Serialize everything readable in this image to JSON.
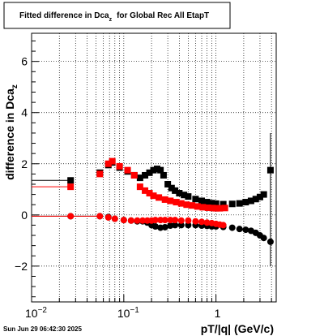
{
  "chart_data": {
    "type": "scatter",
    "title_main": "Fitted difference in Dca",
    "title_sub": "z",
    "title_tail": "for Global Rec All EtapT",
    "xlabel": "pT/|q| (GeV/c)",
    "ylabel_main": "difference in Dca",
    "ylabel_sub": "z",
    "x_scale": "log",
    "xlim": [
      0.01,
      4.5
    ],
    "ylim": [
      -3.4,
      7.1
    ],
    "grid": true,
    "x_major_ticks": [
      {
        "value": 0.01,
        "label": "10",
        "exp": "−2"
      },
      {
        "value": 0.1,
        "label": "10",
        "exp": "−1"
      },
      {
        "value": 1,
        "label": "1",
        "exp": ""
      }
    ],
    "y_ticks": [
      {
        "value": -2,
        "label": "−2"
      },
      {
        "value": 0,
        "label": "0"
      },
      {
        "value": 2,
        "label": "2"
      },
      {
        "value": 4,
        "label": "4"
      },
      {
        "value": 6,
        "label": "6"
      }
    ],
    "colors": {
      "black": "#000000",
      "red": "#ff0000"
    },
    "series": [
      {
        "color": "#000000",
        "marker": "square",
        "points": [
          [
            0.0265,
            1.35
          ],
          [
            0.055,
            1.65
          ],
          [
            0.068,
            1.95
          ],
          [
            0.075,
            2.05
          ],
          [
            0.09,
            1.85
          ],
          [
            0.11,
            1.7
          ],
          [
            0.13,
            1.55
          ],
          [
            0.15,
            1.45
          ],
          [
            0.17,
            1.55
          ],
          [
            0.19,
            1.65
          ],
          [
            0.21,
            1.75
          ],
          [
            0.23,
            1.8
          ],
          [
            0.25,
            1.75
          ],
          [
            0.27,
            1.55
          ],
          [
            0.3,
            1.2
          ],
          [
            0.33,
            1.05
          ],
          [
            0.36,
            0.95
          ],
          [
            0.4,
            0.85
          ],
          [
            0.45,
            0.78
          ],
          [
            0.5,
            0.72
          ],
          [
            0.6,
            0.62
          ],
          [
            0.7,
            0.55
          ],
          [
            0.8,
            0.5
          ],
          [
            0.9,
            0.46
          ],
          [
            1.0,
            0.44
          ],
          [
            1.2,
            0.42
          ],
          [
            1.5,
            0.43
          ],
          [
            1.8,
            0.45
          ],
          [
            2.1,
            0.5
          ],
          [
            2.4,
            0.55
          ],
          [
            2.7,
            0.62
          ],
          [
            3.0,
            0.7
          ],
          [
            3.3,
            0.8
          ],
          [
            3.9,
            1.75
          ]
        ]
      },
      {
        "color": "#ff0000",
        "marker": "square",
        "points": [
          [
            0.0265,
            1.1
          ],
          [
            0.055,
            1.6
          ],
          [
            0.068,
            2.0
          ],
          [
            0.075,
            2.1
          ],
          [
            0.09,
            1.9
          ],
          [
            0.11,
            1.75
          ],
          [
            0.13,
            1.55
          ],
          [
            0.15,
            1.1
          ],
          [
            0.17,
            0.95
          ],
          [
            0.19,
            0.85
          ],
          [
            0.21,
            0.75
          ],
          [
            0.24,
            0.68
          ],
          [
            0.28,
            0.6
          ],
          [
            0.32,
            0.55
          ],
          [
            0.37,
            0.5
          ],
          [
            0.42,
            0.45
          ],
          [
            0.48,
            0.4
          ],
          [
            0.55,
            0.37
          ],
          [
            0.63,
            0.33
          ],
          [
            0.72,
            0.3
          ],
          [
            0.82,
            0.28
          ],
          [
            0.92,
            0.27
          ],
          [
            1.0,
            0.26
          ],
          [
            1.1,
            0.26
          ],
          [
            1.25,
            0.27
          ]
        ]
      },
      {
        "color": "#000000",
        "marker": "circle",
        "points": [
          [
            0.0265,
            -0.05
          ],
          [
            0.055,
            -0.05
          ],
          [
            0.068,
            -0.08
          ],
          [
            0.08,
            -0.15
          ],
          [
            0.1,
            -0.2
          ],
          [
            0.12,
            -0.22
          ],
          [
            0.14,
            -0.25
          ],
          [
            0.16,
            -0.25
          ],
          [
            0.18,
            -0.3
          ],
          [
            0.2,
            -0.4
          ],
          [
            0.22,
            -0.45
          ],
          [
            0.25,
            -0.5
          ],
          [
            0.28,
            -0.48
          ],
          [
            0.32,
            -0.42
          ],
          [
            0.36,
            -0.4
          ],
          [
            0.42,
            -0.4
          ],
          [
            0.5,
            -0.4
          ],
          [
            0.6,
            -0.4
          ],
          [
            0.7,
            -0.42
          ],
          [
            0.8,
            -0.43
          ],
          [
            0.9,
            -0.45
          ],
          [
            1.0,
            -0.45
          ],
          [
            1.2,
            -0.47
          ],
          [
            1.5,
            -0.5
          ],
          [
            1.8,
            -0.55
          ],
          [
            2.1,
            -0.58
          ],
          [
            2.4,
            -0.62
          ],
          [
            2.7,
            -0.7
          ],
          [
            3.0,
            -0.8
          ],
          [
            3.3,
            -0.9
          ],
          [
            3.9,
            -1.05
          ]
        ]
      },
      {
        "color": "#ff0000",
        "marker": "circle",
        "points": [
          [
            0.0265,
            -0.05
          ],
          [
            0.055,
            -0.05
          ],
          [
            0.068,
            -0.1
          ],
          [
            0.08,
            -0.15
          ],
          [
            0.1,
            -0.2
          ],
          [
            0.12,
            -0.22
          ],
          [
            0.14,
            -0.22
          ],
          [
            0.16,
            -0.22
          ],
          [
            0.18,
            -0.22
          ],
          [
            0.2,
            -0.22
          ],
          [
            0.22,
            -0.2
          ],
          [
            0.25,
            -0.2
          ],
          [
            0.28,
            -0.2
          ],
          [
            0.32,
            -0.2
          ],
          [
            0.36,
            -0.2
          ],
          [
            0.42,
            -0.22
          ],
          [
            0.5,
            -0.22
          ],
          [
            0.6,
            -0.25
          ],
          [
            0.7,
            -0.27
          ],
          [
            0.8,
            -0.3
          ],
          [
            0.9,
            -0.32
          ],
          [
            1.0,
            -0.35
          ],
          [
            1.1,
            -0.38
          ],
          [
            1.2,
            -0.4
          ]
        ]
      }
    ],
    "horizontal_error_bars": [
      {
        "color": "#000000",
        "y": 1.35,
        "x_from": 0.01,
        "x_to": 0.0265
      },
      {
        "color": "#ff0000",
        "y": 1.1,
        "x_from": 0.01,
        "x_to": 0.0265
      },
      {
        "color": "#000000",
        "y": -0.05,
        "x_from": 0.01,
        "x_to": 0.055
      },
      {
        "color": "#ff0000",
        "y": -0.05,
        "x_from": 0.01,
        "x_to": 0.055
      }
    ],
    "vertical_error_bars": [
      {
        "color": "#000000",
        "x": 3.9,
        "y_from": -2.0,
        "y_to": 3.2
      }
    ]
  },
  "footer": {
    "timestamp": "Sun Jun 29 06:42:30 2025"
  }
}
